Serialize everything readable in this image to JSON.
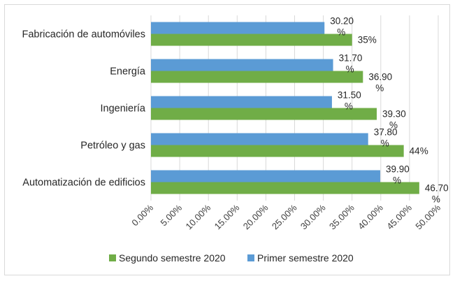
{
  "chart_data": {
    "type": "bar",
    "orientation": "horizontal",
    "categories": [
      "Fabricación de automóviles",
      "Energía",
      "Ingeniería",
      "Petróleo y gas",
      "Automatización de edificios"
    ],
    "series": [
      {
        "name": "Primer semestre 2020",
        "color": "#5b9bd5",
        "values": [
          30.2,
          31.7,
          31.5,
          37.8,
          39.9
        ],
        "labels": [
          [
            "30.20",
            "%"
          ],
          [
            "31.70",
            "%"
          ],
          [
            "31.50",
            "%"
          ],
          [
            "37.80",
            "%"
          ],
          [
            "39.90",
            "%"
          ]
        ]
      },
      {
        "name": "Segundo semestre 2020",
        "color": "#70ad47",
        "values": [
          35,
          36.9,
          39.3,
          44,
          46.7
        ],
        "labels": [
          [
            "35%"
          ],
          [
            "36.90",
            "%"
          ],
          [
            "39.30",
            "%"
          ],
          [
            "44%"
          ],
          [
            "46.70",
            "%"
          ]
        ]
      }
    ],
    "xlim": [
      0,
      50
    ],
    "xticks": [
      "0.00%",
      "5.00%",
      "10.00%",
      "15.00%",
      "20.00%",
      "25.00%",
      "30.00%",
      "35.00%",
      "40.00%",
      "45.00%",
      "50.00%"
    ],
    "grid": true,
    "legend_position": "bottom",
    "legend_order": [
      "Segundo semestre 2020",
      "Primer semestre 2020"
    ],
    "title": "",
    "xlabel": "",
    "ylabel": ""
  }
}
